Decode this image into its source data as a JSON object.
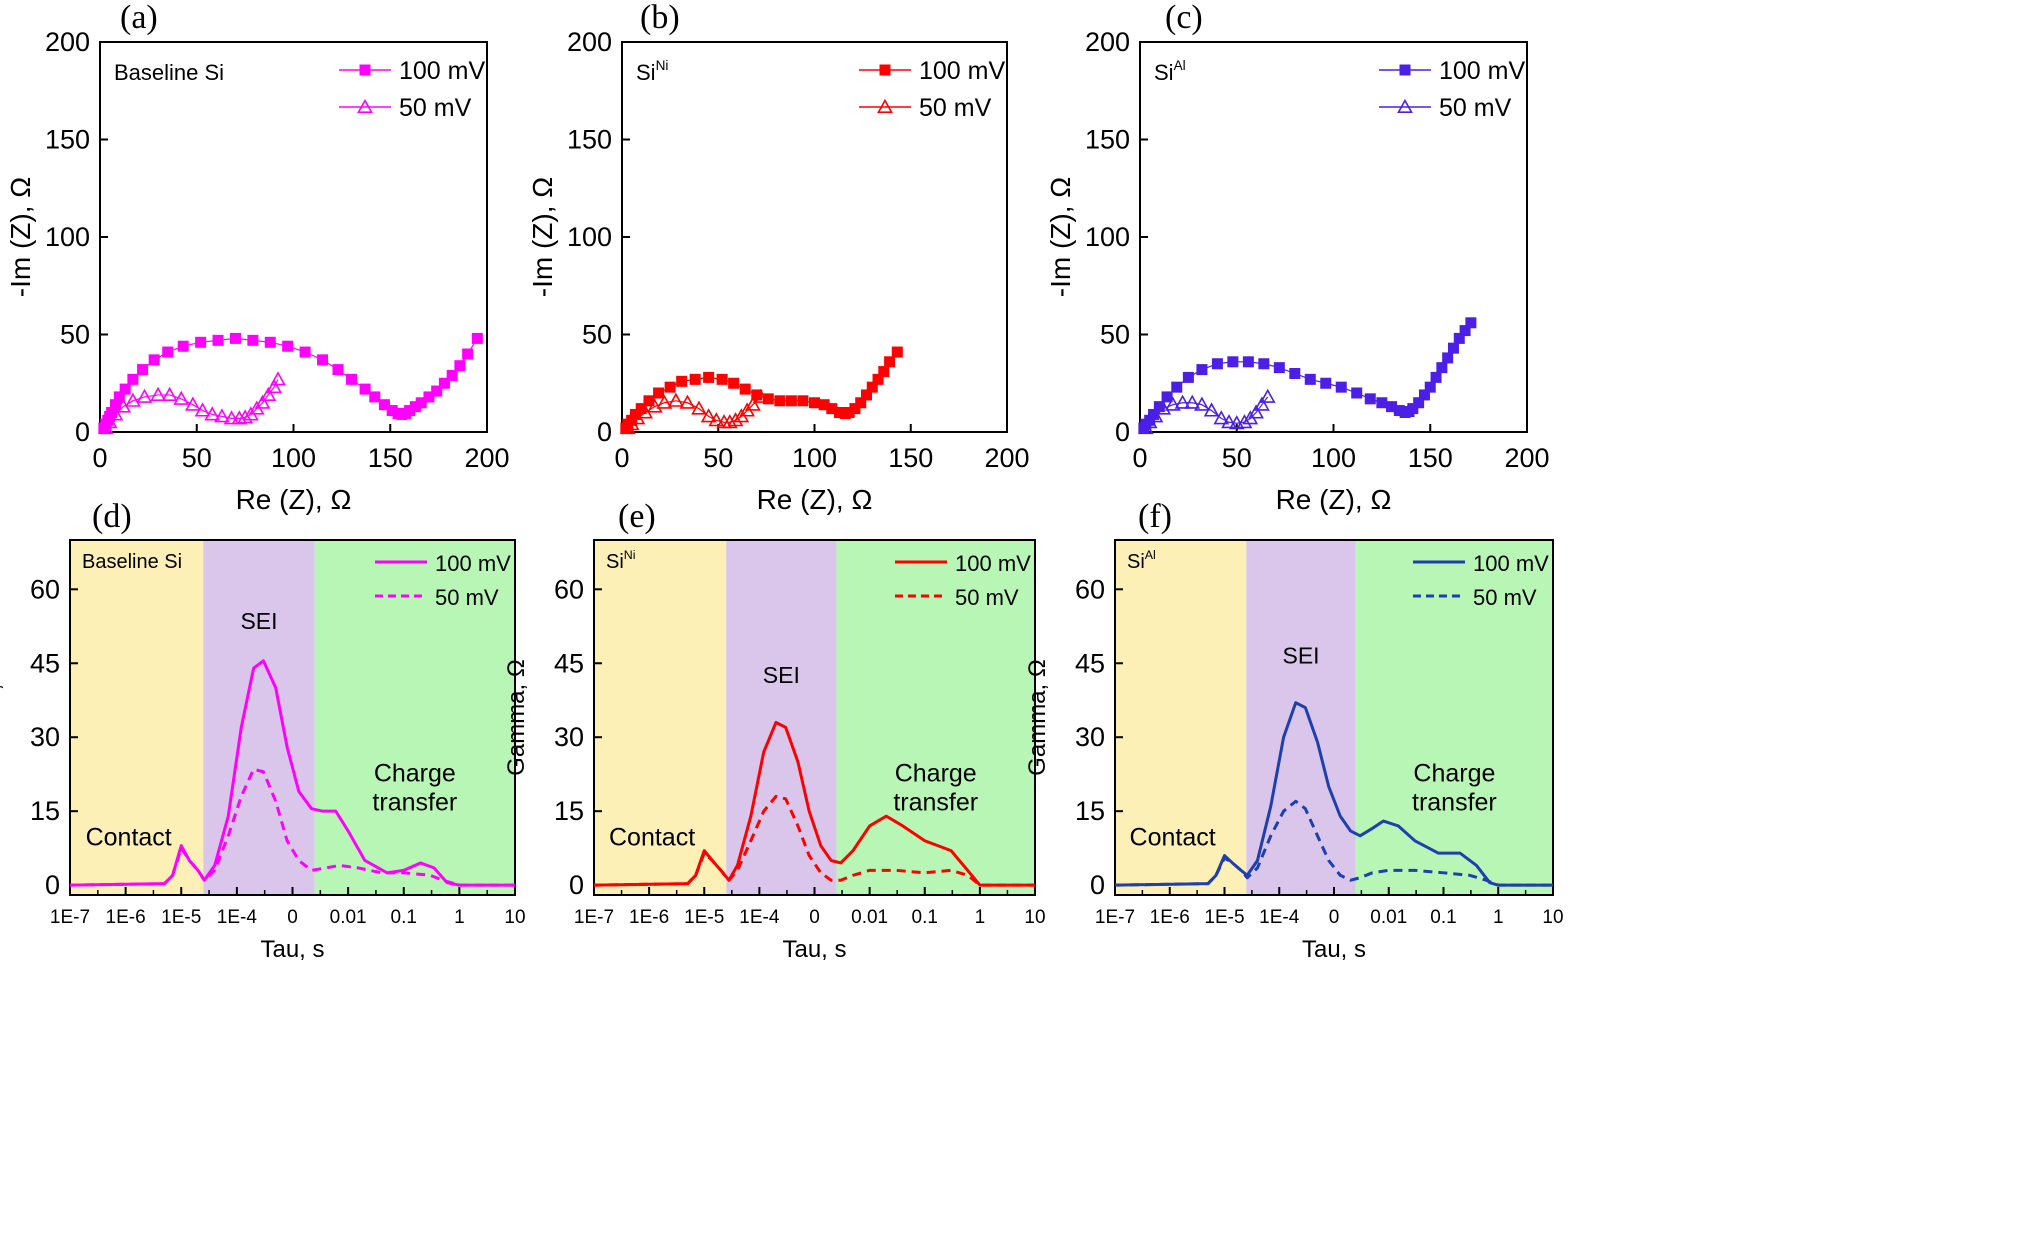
{
  "figure": {
    "colors": {
      "baseline": "#ff00ff",
      "ni": "#ff0000",
      "al_top": "#4b1fe6",
      "al_bottom": "#1f3fae",
      "contact_band": "#fcf0b6",
      "sei_band": "#d9c6ea",
      "charge_band": "#b8f6b5"
    }
  },
  "chart_data": [
    {
      "id": "a",
      "panel_label": "(a)",
      "type": "scatter",
      "annotation": "Baseline Si",
      "annotation_sup": "",
      "xlabel": "Re (Z), Ω",
      "ylabel": "-Im (Z), Ω",
      "xlim": [
        0,
        200
      ],
      "ylim": [
        0,
        200
      ],
      "xticks": [
        "0",
        "50",
        "100",
        "150",
        "200"
      ],
      "yticks": [
        "0",
        "50",
        "100",
        "150",
        "200"
      ],
      "legend": {
        "position": "top-right"
      },
      "series": [
        {
          "name": "100 mV",
          "color": "#ff00ff",
          "marker": "square-filled",
          "x": [
            2,
            3,
            4,
            5,
            6,
            8,
            10,
            13,
            17,
            22,
            28,
            35,
            43,
            52,
            61,
            70,
            79,
            88,
            97,
            106,
            115,
            123,
            130,
            137,
            142,
            147,
            151,
            154,
            156,
            158,
            160,
            163,
            166,
            170,
            174,
            178,
            182,
            186,
            190,
            195
          ],
          "y": [
            2,
            4,
            6,
            8,
            10,
            14,
            18,
            22,
            27,
            32,
            37,
            41,
            44,
            46,
            47,
            48,
            47,
            46,
            44,
            41,
            37,
            32,
            27,
            22,
            18,
            14,
            11,
            9.5,
            9,
            9.5,
            11,
            13,
            15,
            18,
            21,
            25,
            29,
            34,
            40,
            48
          ]
        },
        {
          "name": "50 mV",
          "color": "#ff00ff",
          "marker": "triangle-open",
          "x": [
            3,
            5,
            8,
            12,
            17,
            23,
            30,
            36,
            42,
            48,
            53,
            58,
            63,
            68,
            72,
            75,
            78,
            81,
            84,
            87,
            90,
            92
          ],
          "y": [
            2,
            5,
            9,
            13,
            16,
            18,
            19,
            19,
            17,
            14,
            11,
            9,
            8,
            7,
            7,
            7.5,
            9,
            12,
            15,
            19,
            23,
            27
          ]
        }
      ]
    },
    {
      "id": "b",
      "panel_label": "(b)",
      "type": "scatter",
      "annotation": "Si",
      "annotation_sup": "Ni",
      "xlabel": "Re (Z), Ω",
      "ylabel": "-Im (Z), Ω",
      "xlim": [
        0,
        200
      ],
      "ylim": [
        0,
        200
      ],
      "xticks": [
        "0",
        "50",
        "100",
        "150",
        "200"
      ],
      "yticks": [
        "0",
        "50",
        "100",
        "150",
        "200"
      ],
      "legend": {
        "position": "top-right"
      },
      "series": [
        {
          "name": "100 mV",
          "color": "#ff0000",
          "marker": "square-filled",
          "x": [
            2,
            3,
            5,
            7,
            10,
            14,
            19,
            25,
            31,
            38,
            45,
            52,
            58,
            64,
            70,
            76,
            82,
            88,
            94,
            100,
            105,
            109,
            113,
            116,
            118,
            121,
            124,
            127,
            130,
            133,
            136,
            139,
            143
          ],
          "y": [
            2,
            4,
            6,
            9,
            12,
            16,
            20,
            23,
            26,
            27,
            28,
            27,
            25,
            22,
            19,
            17,
            16,
            16,
            16,
            15,
            14,
            12,
            10,
            9.5,
            10,
            12,
            15,
            19,
            23,
            27,
            31,
            36,
            41
          ]
        },
        {
          "name": "50 mV",
          "color": "#ff0000",
          "marker": "triangle-open",
          "x": [
            3,
            5,
            8,
            12,
            17,
            22,
            28,
            34,
            40,
            45,
            49,
            53,
            56,
            59,
            62,
            65,
            68,
            72
          ],
          "y": [
            2,
            4,
            7,
            10,
            13,
            15,
            16,
            15,
            12,
            8,
            6,
            5,
            5,
            6,
            8,
            11,
            14,
            18
          ]
        }
      ]
    },
    {
      "id": "c",
      "panel_label": "(c)",
      "type": "scatter",
      "annotation": "Si",
      "annotation_sup": "Al",
      "xlabel": "Re (Z), Ω",
      "ylabel": "-Im (Z), Ω",
      "xlim": [
        0,
        200
      ],
      "ylim": [
        0,
        200
      ],
      "xticks": [
        "0",
        "50",
        "100",
        "150",
        "200"
      ],
      "yticks": [
        "0",
        "50",
        "100",
        "150",
        "200"
      ],
      "legend": {
        "position": "top-right"
      },
      "series": [
        {
          "name": "100 mV",
          "color": "#4b1fe6",
          "marker": "square-filled",
          "x": [
            2,
            3,
            5,
            7,
            10,
            14,
            19,
            25,
            32,
            40,
            48,
            56,
            64,
            72,
            80,
            88,
            96,
            104,
            112,
            119,
            125,
            130,
            134,
            137,
            139,
            141,
            144,
            147,
            150,
            153,
            156,
            159,
            162,
            165,
            168,
            171
          ],
          "y": [
            2,
            4,
            6,
            9,
            13,
            18,
            23,
            28,
            32,
            35,
            36,
            36,
            35,
            33,
            30,
            27,
            25,
            23,
            20,
            17,
            15,
            13,
            11,
            10,
            10.5,
            12,
            15,
            19,
            23,
            28,
            33,
            38,
            43,
            48,
            52,
            56
          ]
        },
        {
          "name": "50 mV",
          "color": "#4b1fe6",
          "marker": "triangle-open",
          "x": [
            3,
            5,
            8,
            12,
            17,
            22,
            27,
            32,
            37,
            42,
            46,
            50,
            54,
            57,
            60,
            63,
            66
          ],
          "y": [
            2,
            5,
            8,
            12,
            14,
            15,
            15,
            14,
            11,
            7,
            5,
            4.5,
            5,
            7,
            10,
            14,
            18
          ]
        }
      ]
    },
    {
      "id": "d",
      "panel_label": "(d)",
      "type": "line",
      "annotation": "Baseline Si",
      "annotation_sup": "",
      "xlabel": "Tau, s",
      "ylabel": "Gamma, Ω",
      "xscale": "log",
      "xlim": [
        1e-07,
        10
      ],
      "ylim": [
        -2,
        70
      ],
      "xticks": [
        "1E-7",
        "1E-6",
        "1E-5",
        "1E-4",
        "0",
        "0.01",
        "0.1",
        "1",
        "10"
      ],
      "yticks": [
        "0",
        "15",
        "30",
        "45",
        "60"
      ],
      "regions": [
        {
          "label": "Contact",
          "x": [
            1e-07,
            2.5e-05
          ]
        },
        {
          "label": "SEI",
          "x": [
            2.5e-05,
            0.0025
          ]
        },
        {
          "label": "Charge\ntransfer",
          "x": [
            0.0025,
            10
          ]
        }
      ],
      "legend": {
        "position": "top-right"
      },
      "series": [
        {
          "name": "100 mV",
          "color": "#ff00ff",
          "style": "solid",
          "x": [
            1e-07,
            5e-06,
            7e-06,
            1e-05,
            1.4e-05,
            2e-05,
            2.6e-05,
            4e-05,
            7e-05,
            0.00012,
            0.0002,
            0.0003,
            0.0005,
            0.0008,
            0.0013,
            0.0022,
            0.0035,
            0.006,
            0.01,
            0.02,
            0.05,
            0.1,
            0.2,
            0.35,
            0.6,
            1,
            10
          ],
          "y": [
            0,
            0.3,
            2,
            8,
            5,
            3,
            1,
            4,
            14,
            32,
            44,
            45.5,
            40,
            28,
            19,
            15.5,
            15,
            15,
            11,
            5,
            2.5,
            3,
            4.5,
            3.5,
            0.5,
            0,
            0
          ]
        },
        {
          "name": "50 mV",
          "color": "#ff00ff",
          "style": "dashed",
          "x": [
            1e-07,
            5e-06,
            7e-06,
            1e-05,
            1.4e-05,
            2e-05,
            2.6e-05,
            4e-05,
            7e-05,
            0.00012,
            0.0002,
            0.0003,
            0.0005,
            0.0008,
            0.0013,
            0.0022,
            0.004,
            0.007,
            0.015,
            0.04,
            0.1,
            0.3,
            0.5,
            1,
            10
          ],
          "y": [
            0,
            0.3,
            2,
            7.5,
            5,
            3,
            1,
            3,
            10,
            18,
            23.5,
            23,
            17,
            9,
            5,
            3,
            3.5,
            4,
            3.5,
            2.5,
            2.5,
            2,
            1,
            0,
            0
          ]
        }
      ]
    },
    {
      "id": "e",
      "panel_label": "(e)",
      "type": "line",
      "annotation": "Si",
      "annotation_sup": "Ni",
      "xlabel": "Tau, s",
      "ylabel": "Gamma, Ω",
      "xscale": "log",
      "xlim": [
        1e-07,
        10
      ],
      "ylim": [
        -2,
        70
      ],
      "xticks": [
        "1E-7",
        "1E-6",
        "1E-5",
        "1E-4",
        "0",
        "0.01",
        "0.1",
        "1",
        "10"
      ],
      "yticks": [
        "0",
        "15",
        "30",
        "45",
        "60"
      ],
      "regions": [
        {
          "label": "Contact",
          "x": [
            1e-07,
            2.5e-05
          ]
        },
        {
          "label": "SEI",
          "x": [
            2.5e-05,
            0.0025
          ]
        },
        {
          "label": "Charge\ntransfer",
          "x": [
            0.0025,
            10
          ]
        }
      ],
      "legend": {
        "position": "top-right"
      },
      "series": [
        {
          "name": "100 mV",
          "color": "#ff0000",
          "style": "solid",
          "x": [
            1e-07,
            5e-06,
            7e-06,
            1e-05,
            1.4e-05,
            2e-05,
            2.8e-05,
            4e-05,
            7e-05,
            0.00012,
            0.0002,
            0.0003,
            0.0005,
            0.0008,
            0.0013,
            0.002,
            0.003,
            0.005,
            0.01,
            0.02,
            0.04,
            0.1,
            0.3,
            0.6,
            1,
            10
          ],
          "y": [
            0,
            0.3,
            2,
            7,
            5,
            3,
            1,
            4,
            14,
            27,
            33,
            32,
            25,
            15,
            8,
            5,
            4.5,
            7,
            12,
            14,
            12,
            9,
            7,
            3,
            0,
            0
          ]
        },
        {
          "name": "50 mV",
          "color": "#ff0000",
          "style": "dashed",
          "x": [
            1e-07,
            5e-06,
            7e-06,
            1e-05,
            1.4e-05,
            2e-05,
            2.8e-05,
            4e-05,
            7e-05,
            0.00012,
            0.0002,
            0.0003,
            0.0005,
            0.0008,
            0.0013,
            0.002,
            0.003,
            0.005,
            0.01,
            0.03,
            0.1,
            0.3,
            0.6,
            1,
            10
          ],
          "y": [
            0,
            0.3,
            2,
            6.5,
            5,
            3,
            1,
            3,
            9,
            15,
            18,
            17.5,
            12,
            6,
            2.5,
            1,
            1,
            2,
            3,
            3,
            2.5,
            3,
            2,
            0,
            0
          ]
        }
      ]
    },
    {
      "id": "f",
      "panel_label": "(f)",
      "type": "line",
      "annotation": "Si",
      "annotation_sup": "Al",
      "xlabel": "Tau, s",
      "ylabel": "Gamma, Ω",
      "xscale": "log",
      "xlim": [
        1e-07,
        10
      ],
      "ylim": [
        -2,
        70
      ],
      "xticks": [
        "1E-7",
        "1E-6",
        "1E-5",
        "1E-4",
        "0",
        "0.01",
        "0.1",
        "1",
        "10"
      ],
      "yticks": [
        "0",
        "15",
        "30",
        "45",
        "60"
      ],
      "regions": [
        {
          "label": "Contact",
          "x": [
            1e-07,
            2.5e-05
          ]
        },
        {
          "label": "SEI",
          "x": [
            2.5e-05,
            0.0025
          ]
        },
        {
          "label": "Charge\ntransfer",
          "x": [
            0.0025,
            10
          ]
        }
      ],
      "legend": {
        "position": "top-right"
      },
      "series": [
        {
          "name": "100 mV",
          "color": "#1f3fae",
          "style": "solid",
          "x": [
            1e-07,
            5e-06,
            7e-06,
            1e-05,
            1.4e-05,
            2e-05,
            2.6e-05,
            4e-05,
            7e-05,
            0.00012,
            0.0002,
            0.0003,
            0.0005,
            0.0008,
            0.0013,
            0.002,
            0.003,
            0.005,
            0.008,
            0.015,
            0.03,
            0.08,
            0.2,
            0.4,
            0.7,
            1,
            10
          ],
          "y": [
            0,
            0.3,
            2,
            6,
            4.5,
            3,
            2,
            5,
            16,
            30,
            37,
            36,
            29,
            20,
            14,
            11,
            10,
            11.5,
            13,
            12,
            9,
            6.5,
            6.5,
            4,
            0.5,
            0,
            0
          ]
        },
        {
          "name": "50 mV",
          "color": "#1f3fae",
          "style": "dashed",
          "x": [
            1e-07,
            5e-06,
            7e-06,
            1e-05,
            1.4e-05,
            2e-05,
            2.6e-05,
            4e-05,
            7e-05,
            0.00012,
            0.0002,
            0.0003,
            0.0005,
            0.0008,
            0.0013,
            0.002,
            0.003,
            0.005,
            0.01,
            0.03,
            0.1,
            0.3,
            0.6,
            1,
            10
          ],
          "y": [
            0,
            0.3,
            2,
            5.5,
            4.5,
            3,
            1.5,
            3.5,
            10,
            15,
            17,
            15.5,
            10,
            5,
            2,
            1,
            1.5,
            2.5,
            3,
            3,
            2.5,
            2,
            1,
            0,
            0
          ]
        }
      ]
    }
  ]
}
